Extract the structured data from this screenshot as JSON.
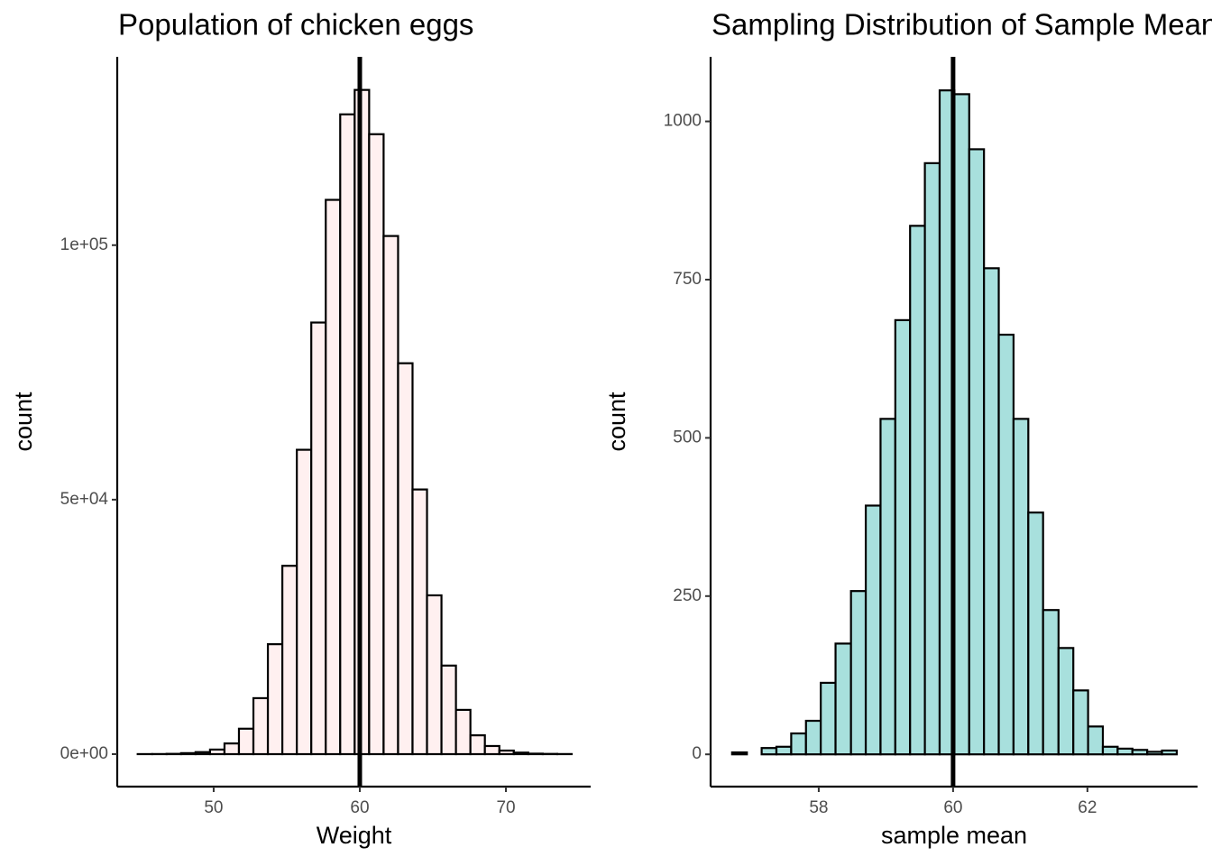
{
  "chart_data": [
    {
      "type": "histogram",
      "title": "Population of chicken eggs",
      "x_label": "Weight",
      "y_label": "count",
      "bins": [
        44.8,
        45.79,
        46.78,
        47.77,
        48.76,
        49.75,
        50.74,
        51.73,
        52.72,
        53.71,
        54.7,
        55.69,
        56.68,
        57.67,
        58.66,
        59.65,
        60.64,
        61.63,
        62.62,
        63.61,
        64.6,
        65.59,
        66.58,
        67.57,
        68.56,
        69.55,
        70.54,
        71.53,
        72.52,
        73.51,
        74.5
      ],
      "values": [
        10,
        20,
        60,
        200,
        400,
        900,
        2100,
        5000,
        11000,
        21600,
        37000,
        59800,
        84800,
        108900,
        125700,
        130500,
        121800,
        101800,
        76800,
        52000,
        31200,
        17400,
        8700,
        3700,
        1600,
        700,
        300,
        100,
        50,
        20
      ],
      "color": "#fff0f0",
      "edge_color": "#000000",
      "vline": 60,
      "xlim": [
        43.4,
        75.8
      ],
      "xticks": [
        50,
        60,
        70
      ],
      "ylim": [
        -6380,
        137000
      ],
      "yticks": [
        {
          "value": 0,
          "label": "0e+00"
        },
        {
          "value": 50000,
          "label": "5e+04"
        },
        {
          "value": 100000,
          "label": "1e+05"
        }
      ]
    },
    {
      "type": "histogram",
      "title": "Sampling Distribution of Sample Means",
      "x_label": "sample mean",
      "y_label": "count",
      "bins": [
        56.71,
        56.93,
        57.15,
        57.37,
        57.59,
        57.81,
        58.03,
        58.25,
        58.48,
        58.7,
        58.92,
        59.14,
        59.36,
        59.58,
        59.8,
        60.02,
        60.24,
        60.46,
        60.68,
        60.9,
        61.12,
        61.34,
        61.57,
        61.79,
        62.01,
        62.23,
        62.45,
        62.67,
        62.89,
        63.11,
        63.33
      ],
      "values": [
        3,
        0,
        10,
        12,
        33,
        53,
        113,
        175,
        258,
        393,
        530,
        686,
        835,
        934,
        1049,
        1043,
        956,
        768,
        663,
        530,
        382,
        228,
        168,
        101,
        44,
        12,
        9,
        7,
        4,
        6
      ],
      "color": "#a8e0dd",
      "edge_color": "#000000",
      "vline": 60,
      "xlim": [
        56.39,
        63.64
      ],
      "xticks": [
        58,
        60,
        62
      ],
      "ylim": [
        -51,
        1102
      ],
      "yticks": [
        0,
        250,
        500,
        750,
        1000
      ]
    }
  ]
}
